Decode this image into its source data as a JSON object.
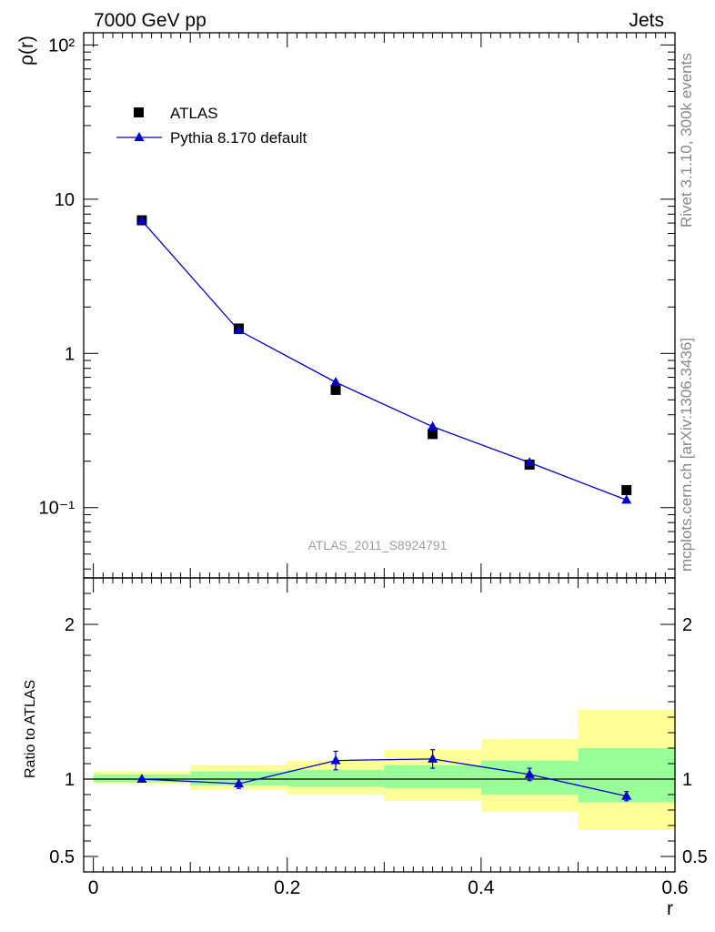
{
  "header": {
    "left": "7000 GeV pp",
    "right": "Jets"
  },
  "side_labels": {
    "rivet": "Rivet 3.1.10,  300k events",
    "mcplots": "mcplots.cern.ch [arXiv:1306.3436]"
  },
  "analysis_label": "ATLAS_2011_S8924791",
  "colors": {
    "mc": "#0000cc",
    "data": "#000000",
    "band_inner": "#99ff99",
    "band_outer": "#ffff99"
  },
  "chart_data": [
    {
      "type": "scatter",
      "ylabel": "ρ(r)",
      "xlabel": "",
      "yscale": "log",
      "xlim": [
        -0.01,
        0.6
      ],
      "ylim": [
        0.035,
        120
      ],
      "ytick_labels": [
        "10⁻¹",
        "1",
        "10",
        "10²"
      ],
      "legend_position": "top-left",
      "series": [
        {
          "name": "ATLAS",
          "marker": "square",
          "x": [
            0.05,
            0.15,
            0.25,
            0.35,
            0.45,
            0.55
          ],
          "y": [
            7.3,
            1.45,
            0.58,
            0.3,
            0.19,
            0.13
          ]
        },
        {
          "name": "Pythia 8.170 default",
          "marker": "triangle",
          "line": true,
          "x": [
            0.05,
            0.15,
            0.25,
            0.35,
            0.45,
            0.55
          ],
          "y": [
            7.25,
            1.41,
            0.65,
            0.335,
            0.196,
            0.112
          ],
          "yerr": [
            0.05,
            0.03,
            0.04,
            0.022,
            0.01,
            0.005
          ]
        }
      ]
    },
    {
      "type": "line",
      "ylabel": "Ratio to ATLAS",
      "xlabel": "r",
      "xlim": [
        -0.01,
        0.6
      ],
      "ylim": [
        0.4,
        2.3
      ],
      "x_tick_labels": [
        "0",
        "0.2",
        "0.4",
        "0.6"
      ],
      "y_tick_labels": [
        "0.5",
        "1",
        "2"
      ],
      "bands": {
        "edges": [
          0.0,
          0.1,
          0.2,
          0.3,
          0.4,
          0.5,
          0.6
        ],
        "inner": [
          [
            0.98,
            1.03
          ],
          [
            0.96,
            1.05
          ],
          [
            0.95,
            1.06
          ],
          [
            0.94,
            1.09
          ],
          [
            0.9,
            1.12
          ],
          [
            0.85,
            1.2
          ]
        ],
        "outer": [
          [
            0.97,
            1.05
          ],
          [
            0.93,
            1.09
          ],
          [
            0.9,
            1.12
          ],
          [
            0.86,
            1.19
          ],
          [
            0.79,
            1.26
          ],
          [
            0.67,
            1.45
          ]
        ]
      },
      "series": [
        {
          "name": "Pythia 8.170 default",
          "x": [
            0.05,
            0.15,
            0.25,
            0.35,
            0.45,
            0.55
          ],
          "y": [
            1.0,
            0.97,
            1.12,
            1.13,
            1.03,
            0.89
          ],
          "yerr": [
            0.01,
            0.03,
            0.06,
            0.06,
            0.04,
            0.03
          ]
        }
      ]
    }
  ]
}
